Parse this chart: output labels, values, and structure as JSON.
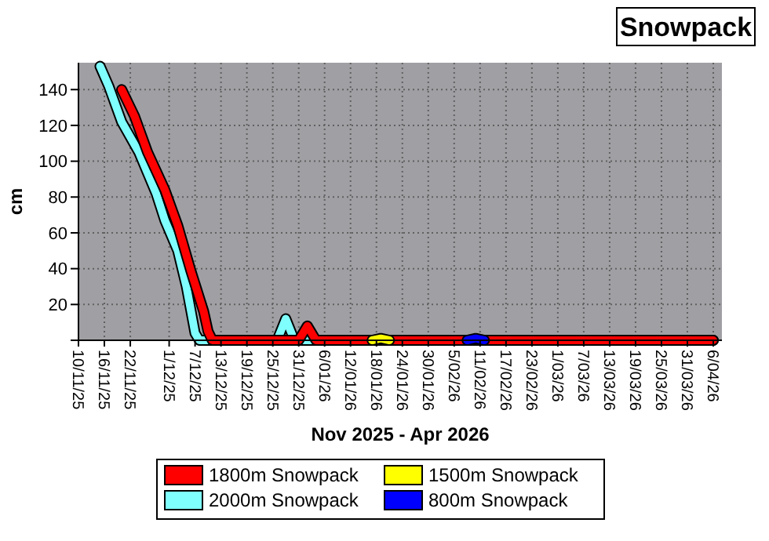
{
  "chart_data": {
    "type": "line",
    "title": "Snowpack",
    "xlabel": "Nov 2025 - Apr 2026",
    "ylabel": "cm",
    "xlim": [
      "2025-11-10",
      "2026-04-08"
    ],
    "xticks": [
      {
        "value": "2025-11-10",
        "label": "10/11/25"
      },
      {
        "value": "2025-11-16",
        "label": "16/11/25"
      },
      {
        "value": "2025-11-22",
        "label": "22/11/25"
      },
      {
        "value": "2025-12-01",
        "label": "1/12/25"
      },
      {
        "value": "2025-12-07",
        "label": "7/12/25"
      },
      {
        "value": "2025-12-13",
        "label": "13/12/25"
      },
      {
        "value": "2025-12-19",
        "label": "19/12/25"
      },
      {
        "value": "2025-12-25",
        "label": "25/12/25"
      },
      {
        "value": "2025-12-31",
        "label": "31/12/25"
      },
      {
        "value": "2026-01-06",
        "label": "6/01/26"
      },
      {
        "value": "2026-01-12",
        "label": "12/01/26"
      },
      {
        "value": "2026-01-18",
        "label": "18/01/26"
      },
      {
        "value": "2026-01-24",
        "label": "24/01/26"
      },
      {
        "value": "2026-01-30",
        "label": "30/01/26"
      },
      {
        "value": "2026-02-05",
        "label": "5/02/26"
      },
      {
        "value": "2026-02-11",
        "label": "11/02/26"
      },
      {
        "value": "2026-02-17",
        "label": "17/02/26"
      },
      {
        "value": "2026-02-23",
        "label": "23/02/26"
      },
      {
        "value": "2026-03-01",
        "label": "1/03/26"
      },
      {
        "value": "2026-03-07",
        "label": "7/03/26"
      },
      {
        "value": "2026-03-13",
        "label": "13/03/26"
      },
      {
        "value": "2026-03-19",
        "label": "19/03/26"
      },
      {
        "value": "2026-03-25",
        "label": "25/03/26"
      },
      {
        "value": "2026-03-31",
        "label": "31/03/26"
      },
      {
        "value": "2026-04-06",
        "label": "6/04/26"
      }
    ],
    "ylim": [
      0,
      155
    ],
    "yticks": [
      {
        "value": 0,
        "label": null
      },
      20,
      40,
      60,
      80,
      100,
      120,
      140
    ],
    "grid": true,
    "legend": "bottom",
    "marker": "none",
    "line_style": "solid",
    "series": [
      {
        "name": "1800m Snowpack",
        "color": "#ff0000",
        "x": [
          "2025-11-20",
          "2025-11-23",
          "2025-11-26",
          "2025-11-30",
          "2025-12-03",
          "2025-12-06",
          "2025-12-09",
          "2025-12-10",
          "2025-12-11",
          "2025-12-31",
          "2026-01-02",
          "2026-01-04",
          "2026-04-06"
        ],
        "values": [
          140,
          125,
          105,
          84,
          64,
          39,
          16,
          5,
          0,
          0,
          8,
          0,
          0
        ]
      },
      {
        "name": "1500m Snowpack",
        "color": "#ffff00",
        "x": [
          "2026-01-17",
          "2026-01-19",
          "2026-01-21"
        ],
        "values": [
          0,
          1,
          0
        ]
      },
      {
        "name": "2000m Snowpack",
        "color": "#80ffff",
        "x": [
          "2025-11-15",
          "2025-11-17",
          "2025-11-20",
          "2025-11-24",
          "2025-11-28",
          "2025-11-30",
          "2025-12-03",
          "2025-12-05",
          "2025-12-07",
          "2025-12-08",
          "2025-12-26",
          "2025-12-28",
          "2025-12-30",
          "2026-04-06"
        ],
        "values": [
          153,
          142,
          122,
          105,
          82,
          67,
          50,
          30,
          4,
          0,
          0,
          12,
          0,
          0
        ]
      },
      {
        "name": "800m Snowpack",
        "color": "#0000ff",
        "x": [
          "2026-02-08",
          "2026-02-10",
          "2026-02-12"
        ],
        "values": [
          0,
          1,
          0
        ]
      }
    ]
  }
}
